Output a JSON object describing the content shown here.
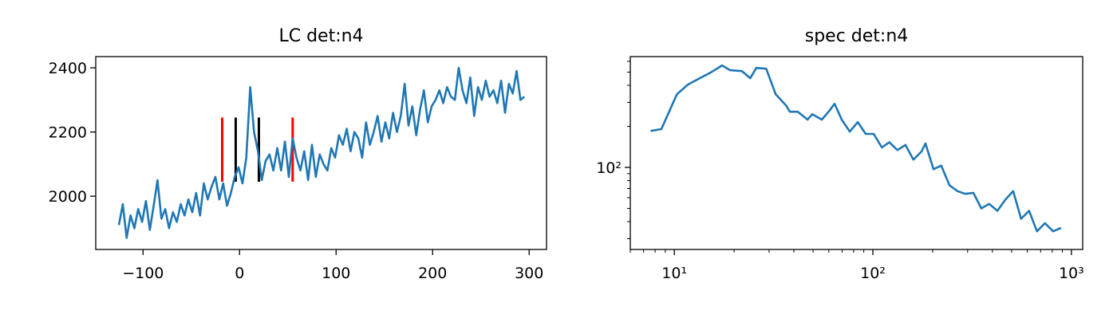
{
  "chart_data": [
    {
      "type": "line",
      "title": "LC det:n4",
      "x": [
        -125,
        -121,
        -117,
        -113,
        -109,
        -105,
        -101,
        -97,
        -93,
        -89,
        -85,
        -81,
        -77,
        -73,
        -69,
        -65,
        -61,
        -57,
        -53,
        -49,
        -45,
        -41,
        -37,
        -33,
        -29,
        -25,
        -21,
        -17,
        -13,
        -9,
        -5,
        -1,
        3,
        7,
        11,
        15,
        19,
        23,
        27,
        31,
        35,
        39,
        43,
        47,
        51,
        55,
        59,
        63,
        67,
        71,
        75,
        79,
        83,
        87,
        91,
        95,
        99,
        103,
        107,
        111,
        115,
        119,
        123,
        127,
        131,
        135,
        139,
        143,
        147,
        151,
        155,
        159,
        163,
        167,
        171,
        175,
        179,
        183,
        187,
        191,
        195,
        199,
        203,
        207,
        211,
        215,
        219,
        223,
        227,
        231,
        235,
        239,
        243,
        247,
        251,
        255,
        259,
        263,
        267,
        271,
        275,
        279,
        283,
        287,
        291,
        295
      ],
      "series": [
        {
          "color": "#1f77b4",
          "values": [
            1910,
            1975,
            1870,
            1940,
            1900,
            1960,
            1920,
            1985,
            1895,
            1970,
            2050,
            1930,
            1960,
            1900,
            1950,
            1920,
            1975,
            1940,
            1990,
            1950,
            2010,
            1940,
            2040,
            1990,
            2030,
            2060,
            1990,
            2040,
            1970,
            2010,
            2060,
            2090,
            2040,
            2120,
            2340,
            2200,
            2140,
            2050,
            2110,
            2130,
            2080,
            2150,
            2080,
            2170,
            2060,
            2180,
            2120,
            2080,
            2140,
            2050,
            2160,
            2060,
            2130,
            2100,
            2080,
            2150,
            2120,
            2190,
            2160,
            2210,
            2140,
            2200,
            2180,
            2120,
            2230,
            2160,
            2200,
            2250,
            2170,
            2230,
            2180,
            2260,
            2200,
            2250,
            2350,
            2220,
            2280,
            2190,
            2270,
            2330,
            2230,
            2280,
            2300,
            2330,
            2290,
            2340,
            2310,
            2300,
            2400,
            2330,
            2290,
            2370,
            2250,
            2340,
            2300,
            2360,
            2310,
            2330,
            2290,
            2360,
            2260,
            2350,
            2320,
            2390,
            2300,
            2310
          ]
        }
      ],
      "vlines": [
        {
          "x": -18,
          "ymin": 2045,
          "ymax": 2245,
          "color": "#ff0000"
        },
        {
          "x": -4,
          "ymin": 2045,
          "ymax": 2245,
          "color": "#000000"
        },
        {
          "x": 20,
          "ymin": 2045,
          "ymax": 2245,
          "color": "#000000"
        },
        {
          "x": 55,
          "ymin": 2045,
          "ymax": 2245,
          "color": "#ff0000"
        }
      ],
      "xlim": [
        -149,
        318
      ],
      "ylim": [
        1834,
        2435
      ],
      "xticks": [
        {
          "value": -100,
          "label": "−100"
        },
        0,
        100,
        200,
        300
      ],
      "yticks": [
        2000,
        2200,
        2400
      ]
    },
    {
      "type": "line",
      "title": "spec det:n4",
      "xscale": "log",
      "yscale": "log",
      "minor_ticks": true,
      "x": [
        7.6,
        8.6,
        10.3,
        11.7,
        13.2,
        15.2,
        17.4,
        19.1,
        21.9,
        24.1,
        25.9,
        29.0,
        32.4,
        36.5,
        38.2,
        41.9,
        46.9,
        49.5,
        55.3,
        60.7,
        64.1,
        69.7,
        76.5,
        83.9,
        92.0,
        101,
        111,
        121,
        133,
        146,
        160,
        176,
        184,
        202,
        221,
        243,
        267,
        292,
        321,
        352,
        385,
        424,
        465,
        509,
        558,
        612,
        671,
        736,
        809,
        887
      ],
      "series": [
        {
          "color": "#1f77b4",
          "values": [
            185,
            191,
            344,
            405,
            445,
            495,
            560,
            516,
            509,
            451,
            537,
            530,
            344,
            285,
            256,
            256,
            224,
            246,
            224,
            263,
            293,
            224,
            183,
            215,
            176,
            176,
            140,
            153,
            134,
            146,
            114,
            131,
            150,
            97,
            103,
            74,
            67,
            64,
            65,
            50,
            54,
            48,
            58,
            67,
            42,
            48,
            34,
            39,
            34,
            36
          ]
        }
      ],
      "xlim": [
        6,
        1140
      ],
      "ylim": [
        25,
        650
      ],
      "xticks": [
        {
          "value": 10,
          "label": "10¹"
        },
        {
          "value": 100,
          "label": "10²"
        },
        {
          "value": 1000,
          "label": "10³"
        }
      ],
      "yticks": [
        {
          "value": 100,
          "label": "10²"
        }
      ]
    }
  ]
}
